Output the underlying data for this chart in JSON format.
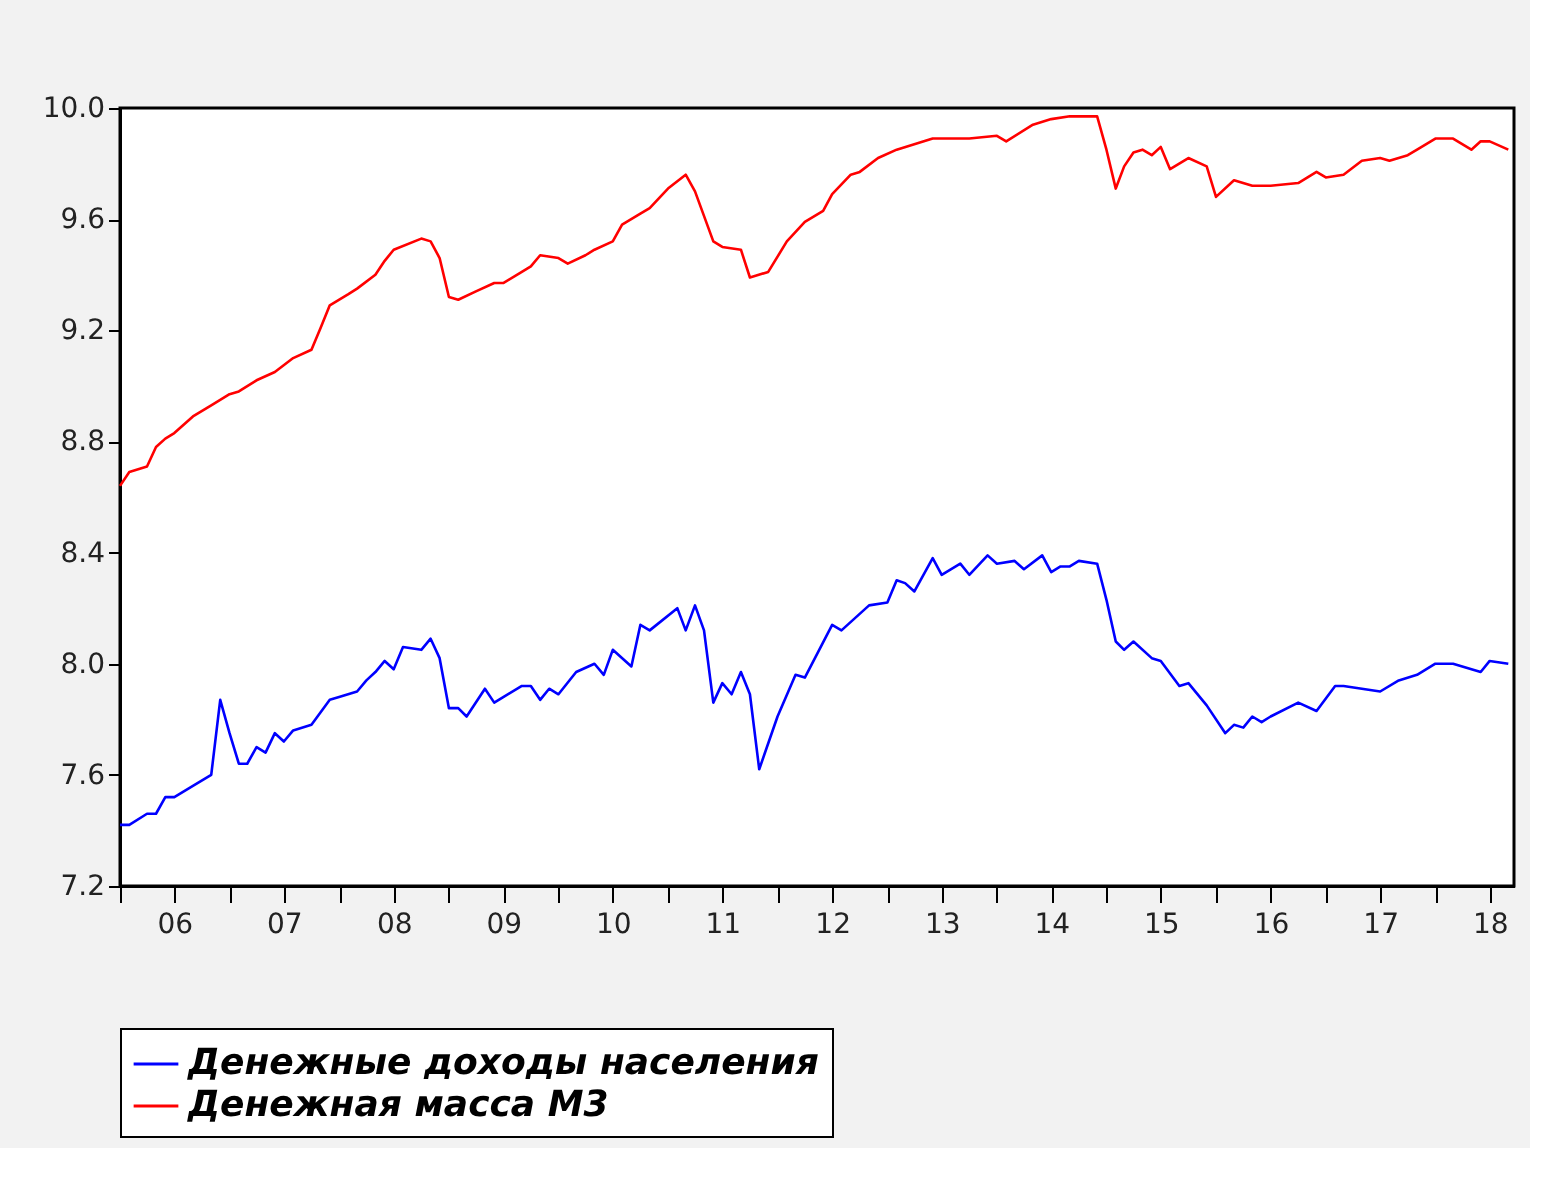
{
  "chart_data": {
    "type": "line",
    "xlim": [
      "2006-01-01",
      "2018-09-20"
    ],
    "xticks": [
      {
        "value": "2006-01",
        "label": null
      },
      {
        "value": "2006-07",
        "label": "06"
      },
      {
        "value": "2007-01",
        "label": null
      },
      {
        "value": "2007-07",
        "label": "07"
      },
      {
        "value": "2008-01",
        "label": null
      },
      {
        "value": "2008-07",
        "label": "08"
      },
      {
        "value": "2009-01",
        "label": null
      },
      {
        "value": "2009-07",
        "label": "09"
      },
      {
        "value": "2010-01",
        "label": null
      },
      {
        "value": "2010-07",
        "label": "10"
      },
      {
        "value": "2011-01",
        "label": null
      },
      {
        "value": "2011-07",
        "label": "11"
      },
      {
        "value": "2012-01",
        "label": null
      },
      {
        "value": "2012-07",
        "label": "12"
      },
      {
        "value": "2013-01",
        "label": null
      },
      {
        "value": "2013-07",
        "label": "13"
      },
      {
        "value": "2014-01",
        "label": null
      },
      {
        "value": "2014-07",
        "label": "14"
      },
      {
        "value": "2015-01",
        "label": null
      },
      {
        "value": "2015-07",
        "label": "15"
      },
      {
        "value": "2016-01",
        "label": null
      },
      {
        "value": "2016-07",
        "label": "16"
      },
      {
        "value": "2017-01",
        "label": null
      },
      {
        "value": "2017-07",
        "label": "17"
      },
      {
        "value": "2018-01",
        "label": null
      },
      {
        "value": "2018-07",
        "label": "18"
      }
    ],
    "ylim": [
      7.2,
      10.0
    ],
    "yticks": [
      {
        "value": 7.2,
        "label": "7.2"
      },
      {
        "value": 7.6,
        "label": "7.6"
      },
      {
        "value": 8.0,
        "label": "8.0"
      },
      {
        "value": 8.4,
        "label": "8.4"
      },
      {
        "value": 8.8,
        "label": "8.8"
      },
      {
        "value": 9.2,
        "label": "9.2"
      },
      {
        "value": 9.6,
        "label": "9.6"
      },
      {
        "value": 10.0,
        "label": "10.0"
      }
    ],
    "grid": false,
    "legend": "bottom",
    "line_style": "solid",
    "marker": "none",
    "series": [
      {
        "name": "Денежные доходы населения",
        "color": "#0000ff",
        "x": [
          "2006-01",
          "2006-02",
          "2006-04",
          "2006-05",
          "2006-06",
          "2006-07",
          "2006-09",
          "2006-11",
          "2006-12",
          "2007-01",
          "2007-02",
          "2007-03",
          "2007-04",
          "2007-05",
          "2007-06",
          "2007-07",
          "2007-08",
          "2007-10",
          "2007-12",
          "2008-01",
          "2008-03",
          "2008-04",
          "2008-05",
          "2008-06",
          "2008-07",
          "2008-08",
          "2008-10",
          "2008-11",
          "2008-12",
          "2009-01",
          "2009-02",
          "2009-03",
          "2009-05",
          "2009-06",
          "2009-07",
          "2009-09",
          "2009-10",
          "2009-11",
          "2009-12",
          "2010-01",
          "2010-03",
          "2010-05",
          "2010-06",
          "2010-07",
          "2010-09",
          "2010-10",
          "2010-11",
          "2011-02",
          "2011-03",
          "2011-04",
          "2011-05",
          "2011-06",
          "2011-07",
          "2011-08",
          "2011-09",
          "2011-10",
          "2011-11",
          "2012-01",
          "2012-03",
          "2012-04",
          "2012-07",
          "2012-08",
          "2012-11",
          "2013-01",
          "2013-02",
          "2013-03",
          "2013-04",
          "2013-06",
          "2013-07",
          "2013-09",
          "2013-10",
          "2013-12",
          "2014-01",
          "2014-03",
          "2014-04",
          "2014-06",
          "2014-07",
          "2014-08",
          "2014-09",
          "2014-10",
          "2014-12",
          "2015-01",
          "2015-02",
          "2015-03",
          "2015-04",
          "2015-06",
          "2015-07",
          "2015-09",
          "2015-10",
          "2015-12",
          "2016-02",
          "2016-03",
          "2016-04",
          "2016-05",
          "2016-06",
          "2016-07",
          "2016-10",
          "2016-12",
          "2017-02",
          "2017-03",
          "2017-07",
          "2017-09",
          "2017-11",
          "2018-01",
          "2018-03",
          "2018-06",
          "2018-07",
          "2018-09"
        ],
        "values": [
          7.42,
          7.42,
          7.46,
          7.46,
          7.52,
          7.52,
          7.56,
          7.6,
          7.87,
          7.75,
          7.64,
          7.64,
          7.7,
          7.68,
          7.75,
          7.72,
          7.76,
          7.78,
          7.87,
          7.88,
          7.9,
          7.94,
          7.97,
          8.01,
          7.98,
          8.06,
          8.05,
          8.09,
          8.02,
          7.84,
          7.84,
          7.81,
          7.91,
          7.86,
          7.88,
          7.92,
          7.92,
          7.87,
          7.91,
          7.89,
          7.97,
          8.0,
          7.96,
          8.05,
          7.99,
          8.14,
          8.12,
          8.2,
          8.12,
          8.21,
          8.12,
          7.86,
          7.93,
          7.89,
          7.97,
          7.89,
          7.62,
          7.81,
          7.96,
          7.95,
          8.14,
          8.12,
          8.21,
          8.22,
          8.3,
          8.29,
          8.26,
          8.38,
          8.32,
          8.36,
          8.32,
          8.39,
          8.36,
          8.37,
          8.34,
          8.39,
          8.33,
          8.35,
          8.35,
          8.37,
          8.36,
          8.23,
          8.08,
          8.05,
          8.08,
          8.02,
          8.01,
          7.92,
          7.93,
          7.85,
          7.75,
          7.78,
          7.77,
          7.81,
          7.79,
          7.81,
          7.86,
          7.83,
          7.92,
          7.92,
          7.9,
          7.94,
          7.96,
          8.0,
          8.0,
          7.97,
          8.01,
          8.0
        ]
      },
      {
        "name": "Денежная масса М3",
        "color": "#ff0000",
        "x": [
          "2006-01",
          "2006-02",
          "2006-04",
          "2006-05",
          "2006-06",
          "2006-07",
          "2006-09",
          "2006-11",
          "2007-01",
          "2007-02",
          "2007-04",
          "2007-06",
          "2007-08",
          "2007-10",
          "2007-11",
          "2007-12",
          "2008-02",
          "2008-03",
          "2008-05",
          "2008-06",
          "2008-07",
          "2008-10",
          "2008-11",
          "2008-12",
          "2009-01",
          "2009-02",
          "2009-04",
          "2009-06",
          "2009-07",
          "2009-09",
          "2009-10",
          "2009-11",
          "2010-01",
          "2010-02",
          "2010-04",
          "2010-05",
          "2010-07",
          "2010-08",
          "2010-10",
          "2010-11",
          "2011-01",
          "2011-03",
          "2011-04",
          "2011-06",
          "2011-07",
          "2011-09",
          "2011-10",
          "2011-12",
          "2012-02",
          "2012-04",
          "2012-06",
          "2012-07",
          "2012-09",
          "2012-10",
          "2012-12",
          "2013-02",
          "2013-06",
          "2013-10",
          "2014-01",
          "2014-02",
          "2014-05",
          "2014-07",
          "2014-09",
          "2014-12",
          "2015-01",
          "2015-02",
          "2015-03",
          "2015-04",
          "2015-05",
          "2015-06",
          "2015-07",
          "2015-08",
          "2015-10",
          "2015-12",
          "2016-01",
          "2016-03",
          "2016-05",
          "2016-07",
          "2016-10",
          "2016-12",
          "2017-01",
          "2017-03",
          "2017-05",
          "2017-07",
          "2017-08",
          "2017-10",
          "2017-11",
          "2018-01",
          "2018-03",
          "2018-05",
          "2018-06",
          "2018-07",
          "2018-09"
        ],
        "values": [
          8.64,
          8.69,
          8.71,
          8.78,
          8.81,
          8.83,
          8.89,
          8.93,
          8.97,
          8.98,
          9.02,
          9.05,
          9.1,
          9.13,
          9.21,
          9.29,
          9.33,
          9.35,
          9.4,
          9.45,
          9.49,
          9.53,
          9.52,
          9.46,
          9.32,
          9.31,
          9.34,
          9.37,
          9.37,
          9.41,
          9.43,
          9.47,
          9.46,
          9.44,
          9.47,
          9.49,
          9.52,
          9.58,
          9.62,
          9.64,
          9.71,
          9.76,
          9.7,
          9.52,
          9.5,
          9.49,
          9.39,
          9.41,
          9.52,
          9.59,
          9.63,
          9.69,
          9.76,
          9.77,
          9.82,
          9.85,
          9.89,
          9.89,
          9.9,
          9.88,
          9.94,
          9.96,
          9.97,
          9.97,
          9.85,
          9.71,
          9.79,
          9.84,
          9.85,
          9.83,
          9.86,
          9.78,
          9.82,
          9.79,
          9.68,
          9.74,
          9.72,
          9.72,
          9.73,
          9.77,
          9.75,
          9.76,
          9.81,
          9.82,
          9.81,
          9.83,
          9.85,
          9.89,
          9.89,
          9.85,
          9.88,
          9.88,
          9.85
        ]
      }
    ]
  }
}
